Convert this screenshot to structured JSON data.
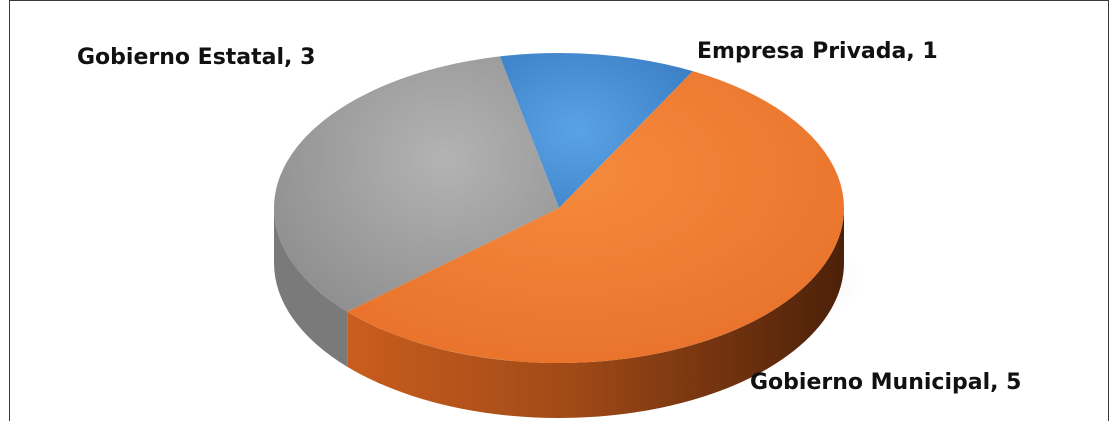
{
  "chart_data": {
    "type": "pie",
    "style": "3d",
    "title": "",
    "slices": [
      {
        "label": "Empresa Privada",
        "value": 1,
        "color": "#4a90d9",
        "display": "Empresa Privada, 1"
      },
      {
        "label": "Gobierno Municipal",
        "value": 5,
        "color": "#ef7d32",
        "display": "Gobierno Municipal, 5"
      },
      {
        "label": "Gobierno Estatal",
        "value": 3,
        "color": "#a7a7a7",
        "display": "Gobierno Estatal, 3"
      }
    ],
    "legend": "none"
  }
}
